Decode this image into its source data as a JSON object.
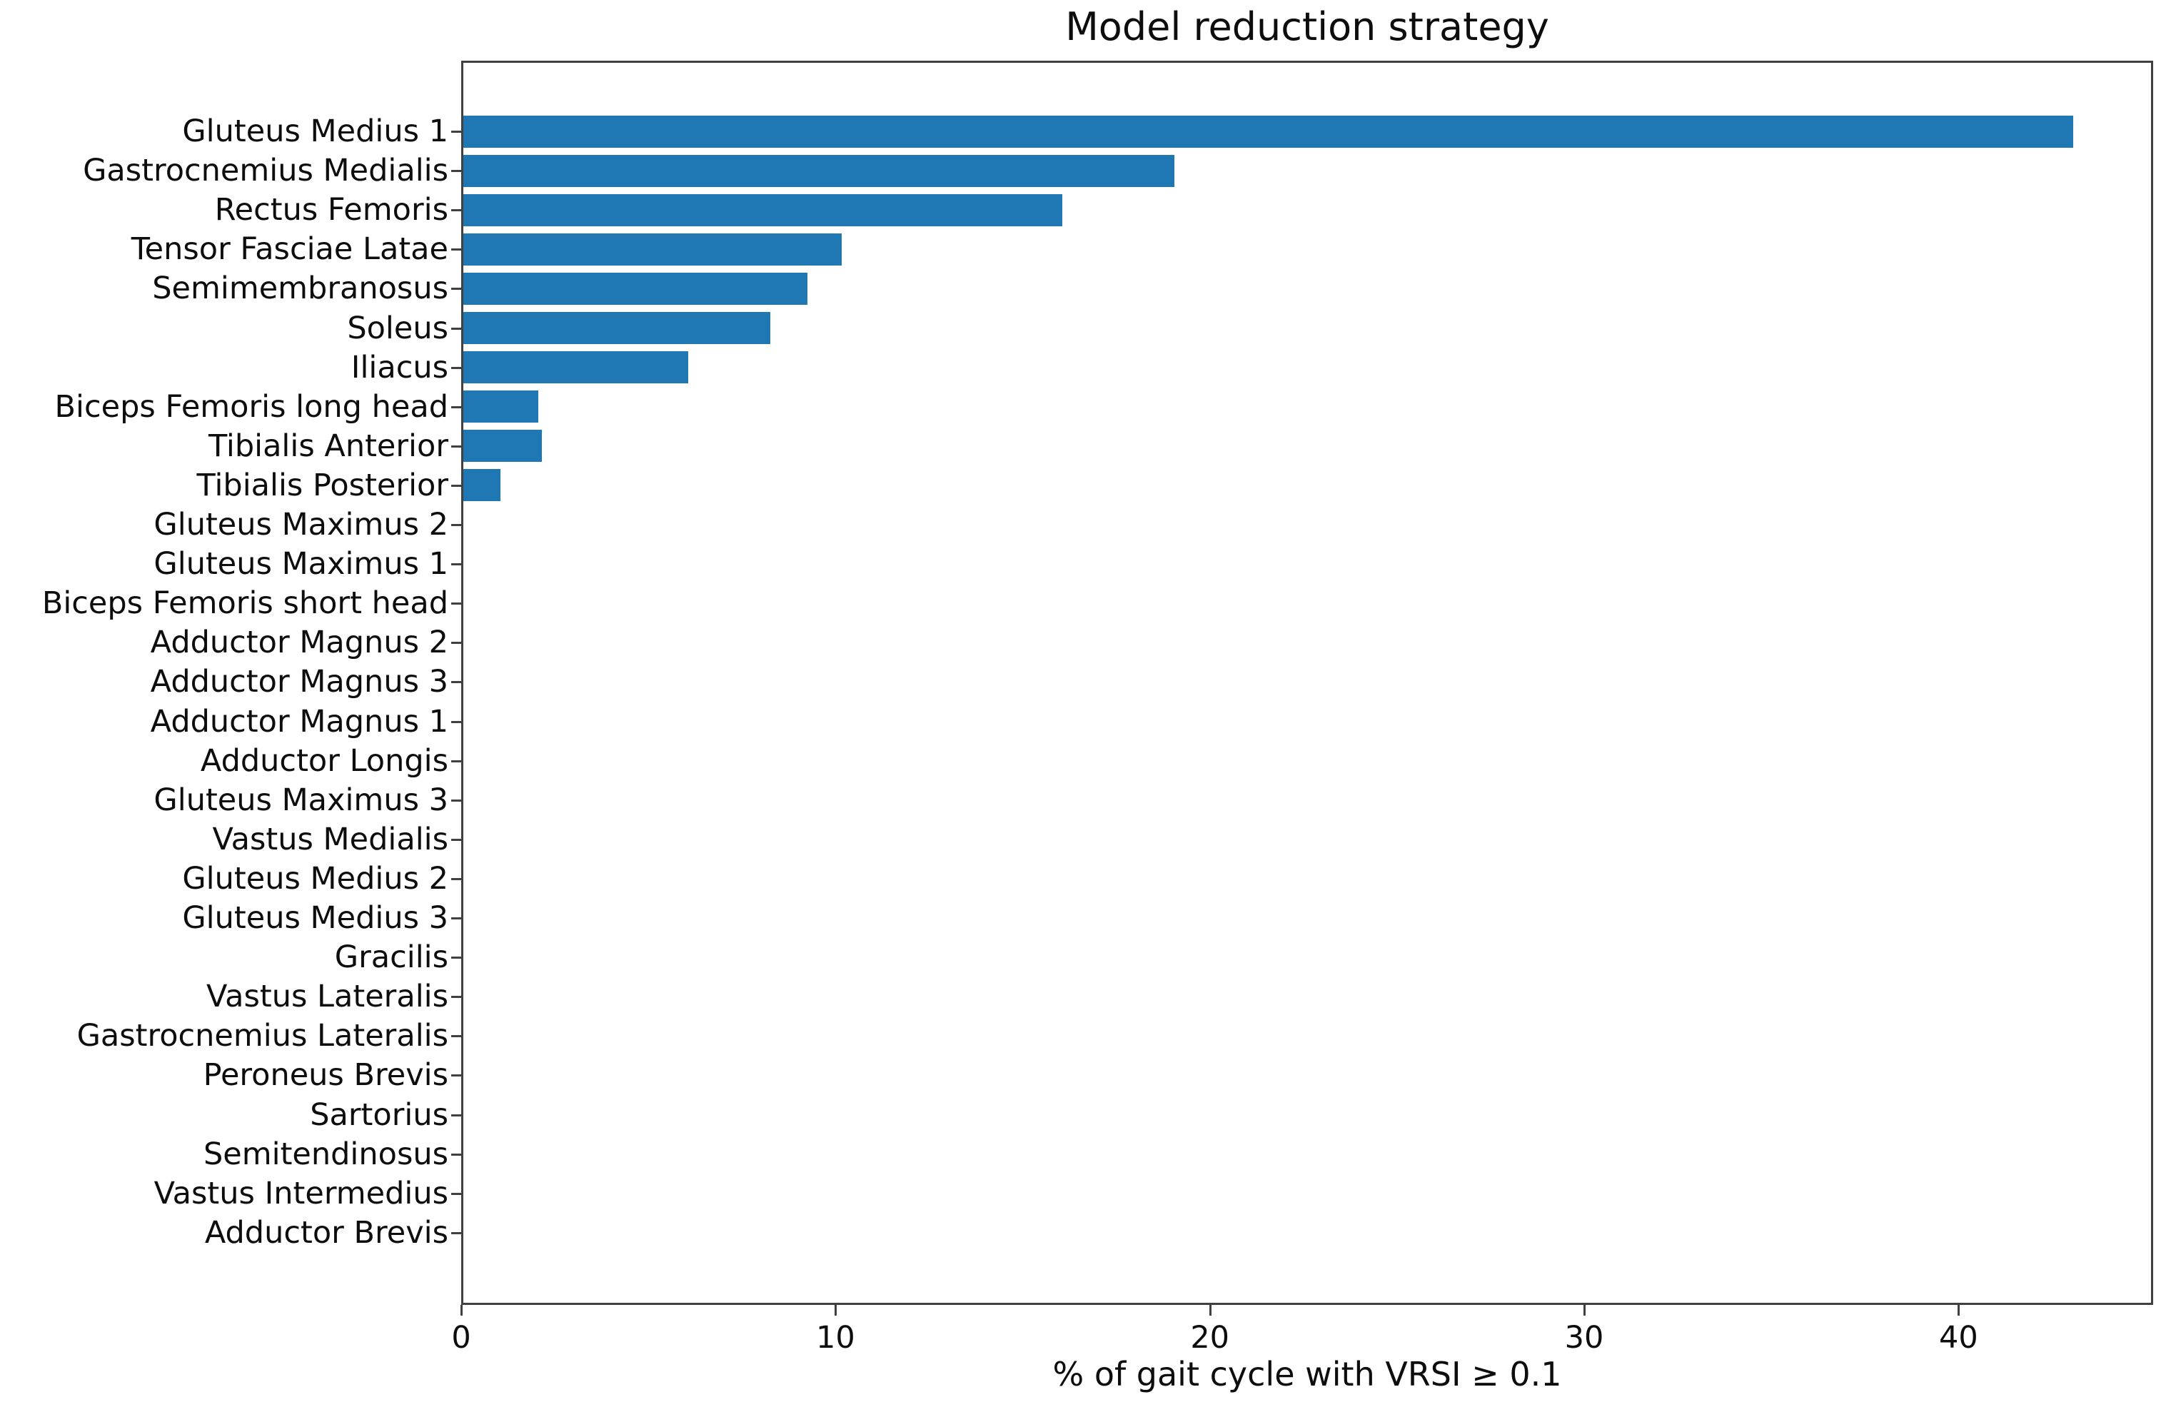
{
  "figure": {
    "title": "Model reduction strategy",
    "xlabel": "% of gait cycle with VRSI ≥ 0.1"
  },
  "chart_data": {
    "type": "bar",
    "orientation": "horizontal",
    "title": "Model reduction strategy",
    "xlabel": "% of gait cycle with VRSI ≥ 0.1",
    "ylabel": "",
    "categories": [
      "Gluteus Medius 1",
      "Gastrocnemius Medialis",
      "Rectus Femoris",
      "Tensor Fasciae Latae",
      "Semimembranosus",
      "Soleus",
      "Iliacus",
      "Biceps Femoris long head",
      "Tibialis Anterior",
      "Tibialis Posterior",
      "Gluteus Maximus 2",
      "Gluteus Maximus 1",
      "Biceps Femoris short head",
      "Adductor Magnus 2",
      "Adductor Magnus 3",
      "Adductor Magnus 1",
      "Adductor Longis",
      "Gluteus Maximus 3",
      "Vastus Medialis",
      "Gluteus Medius 2",
      "Gluteus Medius 3",
      "Gracilis",
      "Vastus Lateralis",
      "Gastrocnemius Lateralis",
      "Peroneus Brevis",
      "Sartorius",
      "Semitendinosus",
      "Vastus Intermedius",
      "Adductor Brevis"
    ],
    "values": [
      43.0,
      19.0,
      16.0,
      10.1,
      9.2,
      8.2,
      6.0,
      2.0,
      2.1,
      1.0,
      0,
      0,
      0,
      0,
      0,
      0,
      0,
      0,
      0,
      0,
      0,
      0,
      0,
      0,
      0,
      0,
      0,
      0,
      0
    ],
    "xlim": [
      0,
      45.2
    ],
    "xticks": [
      0,
      10,
      20,
      30,
      40
    ],
    "grid": false,
    "legend": null,
    "bar_color": "#1f77b4",
    "spine_color": "#404040",
    "text_color": "#0d0d0d"
  }
}
